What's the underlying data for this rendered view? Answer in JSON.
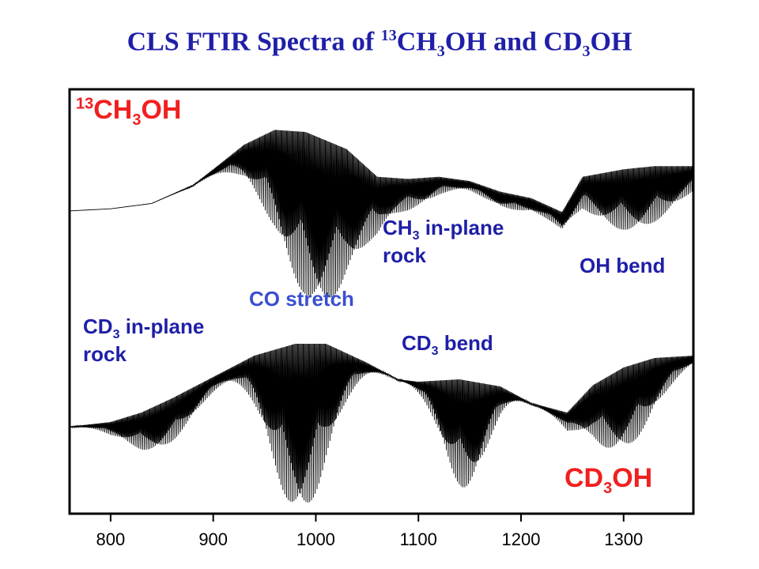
{
  "title": {
    "prefix": "CLS FTIR Spectra of ",
    "iso": "13",
    "m1_a": "CH",
    "m1_sub": "3",
    "m1_b": "OH and CD",
    "m2_sub": "3",
    "m2_b": "OH"
  },
  "labels": {
    "upper_species": {
      "iso": "13",
      "a": "CH",
      "sub": "3",
      "b": "OH"
    },
    "lower_species": {
      "a": "CD",
      "sub": "3",
      "b": "OH"
    },
    "co_stretch": "CO stretch",
    "oh_bend": "OH bend",
    "ch3_rock": {
      "a": "CH",
      "sub": "3",
      "b": " in-plane",
      "line2": "rock"
    },
    "cd3_rock": {
      "a": "CD",
      "sub": "3",
      "b": " in-plane",
      "line2": "rock"
    },
    "cd3_bend": {
      "a": "CD",
      "sub": "3",
      "b": " bend"
    }
  },
  "colors": {
    "title": "#1f1fa8",
    "species": "#f02020",
    "annotation": "#1f1fa8",
    "trace": "#000000"
  },
  "chart_data": {
    "type": "line",
    "x_ticks": [
      800,
      900,
      1000,
      1100,
      1200,
      1300
    ],
    "xlim": [
      760,
      1368
    ],
    "grid": false,
    "series": [
      {
        "baseline": [
          [
            760,
            0.06
          ],
          [
            800,
            0.08
          ],
          [
            840,
            0.13
          ],
          [
            880,
            0.3
          ],
          [
            900,
            0.45
          ],
          [
            930,
            0.68
          ],
          [
            960,
            0.82
          ],
          [
            990,
            0.8
          ],
          [
            1030,
            0.64
          ],
          [
            1060,
            0.38
          ],
          [
            1090,
            0.36
          ],
          [
            1120,
            0.38
          ],
          [
            1150,
            0.34
          ],
          [
            1180,
            0.24
          ],
          [
            1210,
            0.18
          ],
          [
            1240,
            0.05
          ],
          [
            1260,
            0.38
          ],
          [
            1300,
            0.45
          ],
          [
            1330,
            0.48
          ],
          [
            1368,
            0.48
          ]
        ],
        "absorption_bands": [
          {
            "center": 1000,
            "width": 55,
            "depth": 0.95
          },
          {
            "center": 1100,
            "width": 35,
            "depth": 0.12
          },
          {
            "center": 1185,
            "width": 40,
            "depth": 0.08
          },
          {
            "center": 1310,
            "width": 60,
            "depth": 0.35
          }
        ]
      },
      {
        "baseline": [
          [
            760,
            0.1
          ],
          [
            800,
            0.14
          ],
          [
            830,
            0.22
          ],
          [
            860,
            0.34
          ],
          [
            900,
            0.52
          ],
          [
            940,
            0.7
          ],
          [
            980,
            0.8
          ],
          [
            1010,
            0.8
          ],
          [
            1050,
            0.64
          ],
          [
            1080,
            0.5
          ],
          [
            1100,
            0.48
          ],
          [
            1140,
            0.5
          ],
          [
            1180,
            0.44
          ],
          [
            1210,
            0.3
          ],
          [
            1245,
            0.22
          ],
          [
            1270,
            0.45
          ],
          [
            1300,
            0.6
          ],
          [
            1330,
            0.68
          ],
          [
            1368,
            0.7
          ]
        ],
        "absorption_bands": [
          {
            "center": 850,
            "width": 45,
            "depth": 0.25
          },
          {
            "center": 985,
            "width": 40,
            "depth": 0.95
          },
          {
            "center": 1145,
            "width": 30,
            "depth": 0.6
          },
          {
            "center": 1300,
            "width": 45,
            "depth": 0.45
          }
        ]
      }
    ]
  }
}
